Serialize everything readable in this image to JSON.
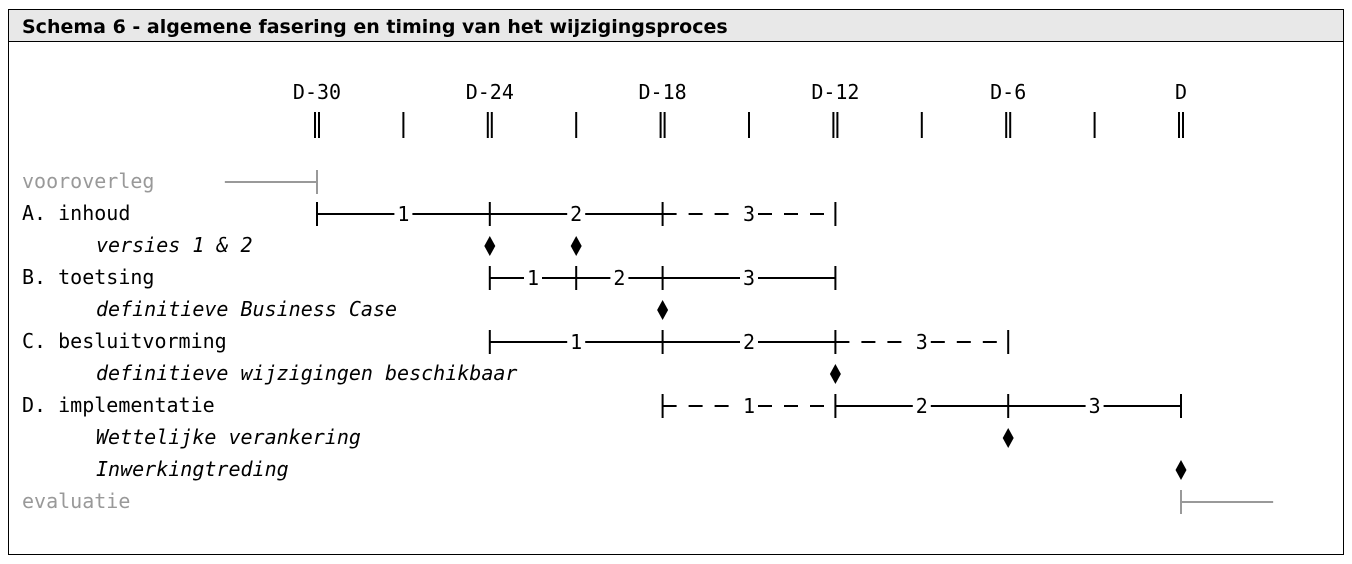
{
  "title": "Schema 6 - algemene fasering en timing van het wijzigingsproces",
  "colors": {
    "line": "#000000",
    "muted": "#999999"
  },
  "timeline": {
    "ticks": [
      {
        "t": 0,
        "label": "D-30"
      },
      {
        "t": 3,
        "label": ""
      },
      {
        "t": 6,
        "label": "D-24"
      },
      {
        "t": 9,
        "label": ""
      },
      {
        "t": 12,
        "label": "D-18"
      },
      {
        "t": 15,
        "label": ""
      },
      {
        "t": 18,
        "label": "D-12"
      },
      {
        "t": 21,
        "label": ""
      },
      {
        "t": 24,
        "label": "D-6"
      },
      {
        "t": 27,
        "label": ""
      },
      {
        "t": 30,
        "label": "D"
      }
    ]
  },
  "rows": [
    {
      "label": "vooroverleg",
      "style": "muted",
      "italic": false,
      "indent": 0,
      "bars": [
        {
          "from": -3.2,
          "to": 0,
          "dashed": false,
          "label": "",
          "start_cap": false,
          "end_cap": true
        }
      ],
      "milestones": []
    },
    {
      "label": "A. inhoud",
      "style": "normal",
      "italic": false,
      "indent": 0,
      "bars": [
        {
          "from": 0,
          "to": 6,
          "dashed": false,
          "label": "1",
          "start_cap": true,
          "end_cap": true
        },
        {
          "from": 6,
          "to": 12,
          "dashed": false,
          "label": "2",
          "start_cap": false,
          "end_cap": true
        },
        {
          "from": 12,
          "to": 18,
          "dashed": true,
          "label": "3",
          "start_cap": false,
          "end_cap": true
        }
      ],
      "milestones": []
    },
    {
      "label": "versies 1 & 2",
      "style": "normal",
      "italic": true,
      "indent": 1,
      "bars": [],
      "milestones": [
        6,
        9
      ]
    },
    {
      "label": "B. toetsing",
      "style": "normal",
      "italic": false,
      "indent": 0,
      "bars": [
        {
          "from": 6,
          "to": 9,
          "dashed": false,
          "label": "1",
          "start_cap": true,
          "end_cap": true
        },
        {
          "from": 9,
          "to": 12,
          "dashed": false,
          "label": "2",
          "start_cap": false,
          "end_cap": true
        },
        {
          "from": 12,
          "to": 18,
          "dashed": false,
          "label": "3",
          "start_cap": false,
          "end_cap": true
        }
      ],
      "milestones": []
    },
    {
      "label": "definitieve Business Case",
      "style": "normal",
      "italic": true,
      "indent": 1,
      "bars": [],
      "milestones": [
        12
      ]
    },
    {
      "label": "C. besluitvorming",
      "style": "normal",
      "italic": false,
      "indent": 0,
      "bars": [
        {
          "from": 6,
          "to": 12,
          "dashed": false,
          "label": "1",
          "start_cap": true,
          "end_cap": true
        },
        {
          "from": 12,
          "to": 18,
          "dashed": false,
          "label": "2",
          "start_cap": false,
          "end_cap": true
        },
        {
          "from": 18,
          "to": 24,
          "dashed": true,
          "label": "3",
          "start_cap": false,
          "end_cap": true
        }
      ],
      "milestones": []
    },
    {
      "label": "definitieve wijzigingen beschikbaar",
      "style": "normal",
      "italic": true,
      "indent": 1,
      "bars": [],
      "milestones": [
        18
      ]
    },
    {
      "label": "D. implementatie",
      "style": "normal",
      "italic": false,
      "indent": 0,
      "bars": [
        {
          "from": 12,
          "to": 18,
          "dashed": true,
          "label": "1",
          "start_cap": true,
          "end_cap": true
        },
        {
          "from": 18,
          "to": 24,
          "dashed": false,
          "label": "2",
          "start_cap": false,
          "end_cap": true
        },
        {
          "from": 24,
          "to": 30,
          "dashed": false,
          "label": "3",
          "start_cap": false,
          "end_cap": true
        }
      ],
      "milestones": []
    },
    {
      "label": "Wettelijke verankering",
      "style": "normal",
      "italic": true,
      "indent": 1,
      "bars": [],
      "milestones": [
        24
      ]
    },
    {
      "label": "Inwerkingtreding",
      "style": "normal",
      "italic": true,
      "indent": 1,
      "bars": [],
      "milestones": [
        30
      ]
    },
    {
      "label": "evaluatie",
      "style": "muted",
      "italic": false,
      "indent": 0,
      "bars": [
        {
          "from": 30,
          "to": 33.2,
          "dashed": false,
          "label": "",
          "start_cap": true,
          "end_cap": false
        }
      ],
      "milestones": []
    }
  ]
}
